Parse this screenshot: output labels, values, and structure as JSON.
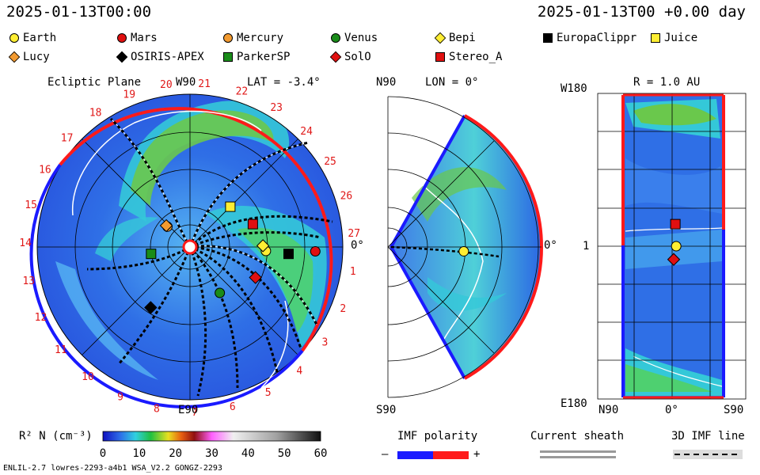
{
  "header": {
    "left_time": "2025-01-13T00:00",
    "right_time": "2025-01-13T00 +0.00 day"
  },
  "legend": [
    {
      "name": "Earth",
      "shape": "circle",
      "color": "#ffee33"
    },
    {
      "name": "Mars",
      "shape": "circle",
      "color": "#e01010"
    },
    {
      "name": "Mercury",
      "shape": "circle",
      "color": "#f29a30"
    },
    {
      "name": "Venus",
      "shape": "circle",
      "color": "#1a8c1a"
    },
    {
      "name": "Bepi",
      "shape": "diamond",
      "color": "#ffee33"
    },
    {
      "name": "EuropaClippr",
      "shape": "square",
      "color": "#000000"
    },
    {
      "name": "Juice",
      "shape": "square",
      "color": "#ffee33"
    },
    {
      "name": "Lucy",
      "shape": "diamond",
      "color": "#f29a30"
    },
    {
      "name": "OSIRIS-APEX",
      "shape": "diamond",
      "color": "#000000"
    },
    {
      "name": "ParkerSP",
      "shape": "square",
      "color": "#1a8c1a"
    },
    {
      "name": "SolO",
      "shape": "diamond",
      "color": "#e01010"
    },
    {
      "name": "Stereo_A",
      "shape": "square",
      "color": "#e01010"
    }
  ],
  "panels": {
    "ecliptic": {
      "title": "Ecliptic Plane",
      "top_label": "W90",
      "bottom_label": "E90",
      "right_label": "0°",
      "lat": "LAT = -3.4°"
    },
    "meridional": {
      "lon": "LON = 0°",
      "top_label": "N90",
      "bottom_label": "S90",
      "right_label": "0°"
    },
    "synoptic": {
      "radius": "R = 1.0 AU",
      "top_left": "W180",
      "bottom_left": "E180",
      "mid_left": "1",
      "bottom_axis": [
        "N90",
        "0°",
        "S90"
      ]
    }
  },
  "bottom": {
    "colorbar_label": "R² N (cm⁻³)",
    "colorbar_ticks": [
      "0",
      "10",
      "20",
      "30",
      "40",
      "50",
      "60"
    ],
    "imf_polarity": "IMF polarity",
    "imf_minus": "–",
    "imf_plus": "+",
    "current_sheath": "Current sheath",
    "imf_line": "3D IMF line",
    "footer": "ENLIL-2.7 lowres-2293-a4b1 WSA_V2.2 GONGZ-2293"
  },
  "chart_data": [
    {
      "type": "heatmap",
      "name": "ecliptic-plane",
      "carrington_sectors": [
        "1",
        "2",
        "3",
        "4",
        "5",
        "6",
        "7",
        "8",
        "9",
        "10",
        "11",
        "12",
        "13",
        "14",
        "15",
        "16",
        "17",
        "18",
        "19",
        "20",
        "21",
        "22",
        "23",
        "24",
        "25",
        "26",
        "27"
      ],
      "bodies": [
        {
          "name": "Earth",
          "lon_deg": -3,
          "r_au": 1.0
        },
        {
          "name": "Mars",
          "lon_deg": -2,
          "r_au": 1.65
        },
        {
          "name": "Mercury",
          "lon_deg": 138,
          "r_au": 0.4
        },
        {
          "name": "Venus",
          "lon_deg": -57,
          "r_au": 0.72
        },
        {
          "name": "Bepi",
          "lon_deg": 1,
          "r_au": 0.96
        },
        {
          "name": "EuropaClippr",
          "lon_deg": -4,
          "r_au": 1.3
        },
        {
          "name": "Juice",
          "lon_deg": 45,
          "r_au": 0.75
        },
        {
          "name": "Lucy",
          "lon_deg": 138,
          "r_au": 0.42
        },
        {
          "name": "OSIRIS-APEX",
          "lon_deg": -123,
          "r_au": 0.95
        },
        {
          "name": "ParkerSP",
          "lon_deg": -170,
          "r_au": 0.52
        },
        {
          "name": "SolO",
          "lon_deg": -25,
          "r_au": 0.95
        },
        {
          "name": "Stereo_A",
          "lon_deg": 20,
          "r_au": 0.88
        }
      ]
    },
    {
      "type": "heatmap",
      "name": "meridional-plane",
      "bodies": [
        {
          "name": "Earth",
          "lat_deg": -3.4,
          "r_au": 1.0
        }
      ]
    },
    {
      "type": "heatmap",
      "name": "synoptic-1au",
      "bodies": [
        {
          "name": "Stereo_A",
          "lat_deg": -2,
          "lon_deg": 20
        },
        {
          "name": "Earth",
          "lat_deg": -3,
          "lon_deg": 0
        },
        {
          "name": "SolO",
          "lat_deg": 0,
          "lon_deg": -12
        }
      ]
    }
  ]
}
